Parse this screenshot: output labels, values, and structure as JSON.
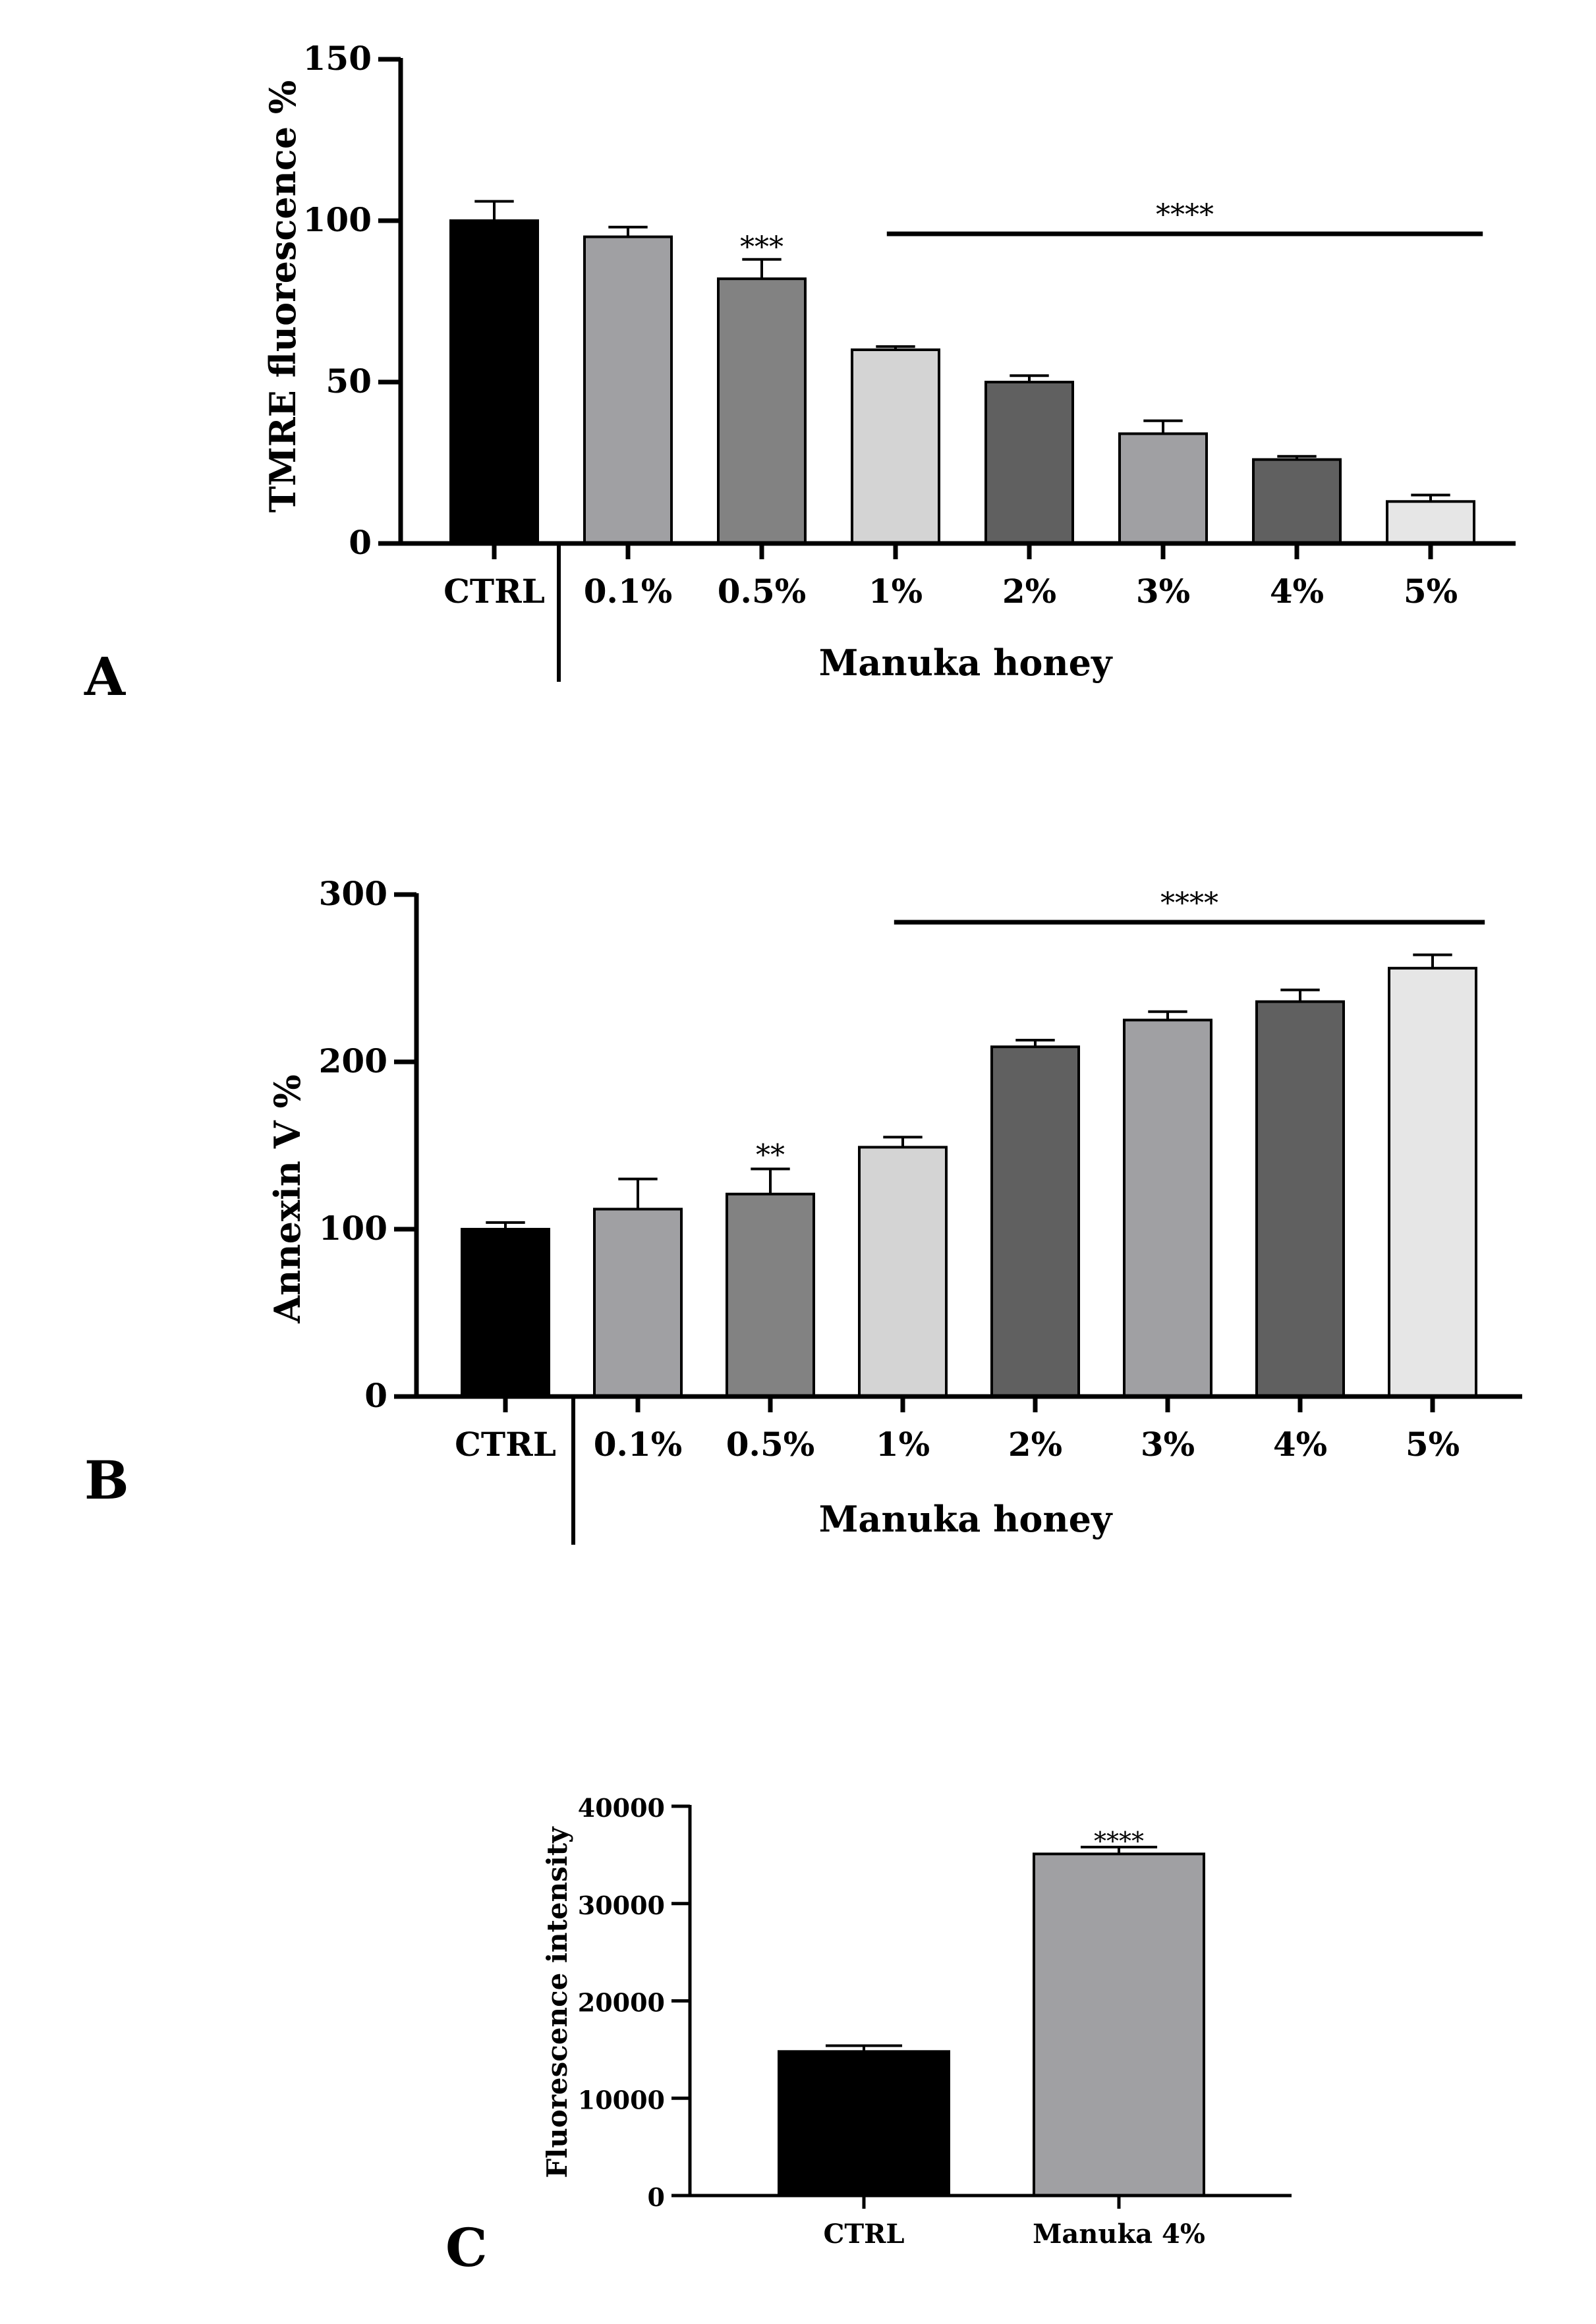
{
  "chart_data": [
    {
      "panel": "A",
      "type": "bar",
      "ylabel": "TMRE fluorescence %",
      "xlabel": "Manuka honey",
      "categories": [
        "CTRL",
        "0.1%",
        "0.5%",
        "1%",
        "2%",
        "3%",
        "4%",
        "5%"
      ],
      "values": [
        100,
        95,
        82,
        60,
        50,
        34,
        26,
        13
      ],
      "errors": [
        6,
        3,
        6,
        1,
        2,
        4,
        1,
        2
      ],
      "colors": [
        "#000000",
        "#a0a0a3",
        "#828282",
        "#d4d4d4",
        "#606060",
        "#a0a0a3",
        "#606060",
        "#e6e6e6"
      ],
      "ylim": [
        0,
        150
      ],
      "yticks": [
        0,
        50,
        100,
        150
      ],
      "ytick_labels": [
        "0",
        "50",
        "100",
        "150"
      ],
      "annotations": [
        {
          "text": "***",
          "category": "0.5%"
        },
        {
          "text": "****",
          "from": "1%",
          "to": "5%",
          "bracket": true
        }
      ]
    },
    {
      "panel": "B",
      "type": "bar",
      "ylabel": "Annexin V %",
      "xlabel": "Manuka honey",
      "categories": [
        "CTRL",
        "0.1%",
        "0.5%",
        "1%",
        "2%",
        "3%",
        "4%",
        "5%"
      ],
      "values": [
        100,
        112,
        121,
        149,
        209,
        225,
        236,
        256
      ],
      "errors": [
        4,
        18,
        15,
        6,
        4,
        5,
        7,
        8
      ],
      "colors": [
        "#000000",
        "#a0a0a3",
        "#828282",
        "#d4d4d4",
        "#606060",
        "#a0a0a3",
        "#606060",
        "#e6e6e6"
      ],
      "ylim": [
        0,
        300
      ],
      "yticks": [
        0,
        100,
        200,
        300
      ],
      "ytick_labels": [
        "0",
        "100",
        "200",
        "300"
      ],
      "annotations": [
        {
          "text": "**",
          "category": "0.5%"
        },
        {
          "text": "****",
          "from": "1%",
          "to": "5%",
          "bracket": true
        }
      ]
    },
    {
      "panel": "C",
      "type": "bar",
      "ylabel": "Fluorescence intensity",
      "xlabel": "",
      "categories": [
        "CTRL",
        "Manuka 4%"
      ],
      "values": [
        14800,
        35100
      ],
      "errors": [
        600,
        700
      ],
      "colors": [
        "#000000",
        "#a0a0a3"
      ],
      "ylim": [
        0,
        40000
      ],
      "yticks": [
        0,
        10000,
        20000,
        30000,
        40000
      ],
      "ytick_labels": [
        "0",
        "10000",
        "20000",
        "30000",
        "40000"
      ],
      "annotations": [
        {
          "text": "****",
          "category": "Manuka 4%"
        }
      ]
    }
  ]
}
